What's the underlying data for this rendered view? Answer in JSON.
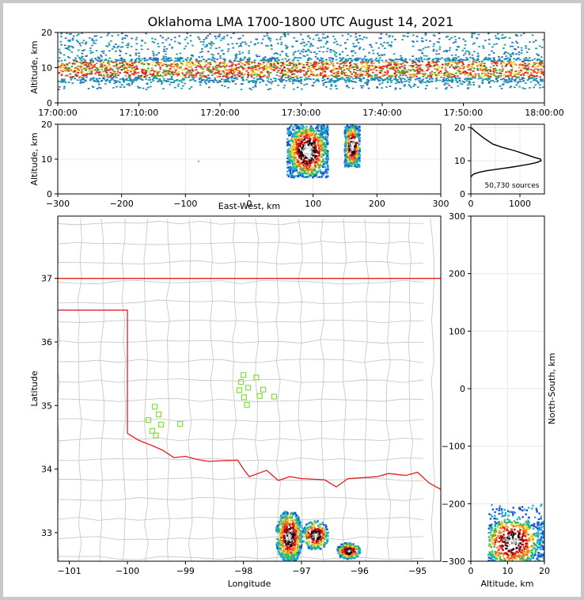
{
  "chart_data": [
    {
      "id": "time-height",
      "type": "heatmap",
      "title": "Oklahoma LMA 1700-1800 UTC August 14, 2021",
      "ylabel": "Altitude, km",
      "xticks": [
        "17:00:00",
        "17:10:00",
        "17:20:00",
        "17:30:00",
        "17:40:00",
        "17:50:00",
        "18:00:00"
      ],
      "xlim_minutes": [
        0,
        60
      ],
      "ylim": [
        0,
        20
      ],
      "yticks": [
        0,
        10,
        20
      ],
      "band": {
        "core_low": 6,
        "core_high": 13,
        "outer_low": 4,
        "outer_high": 20
      }
    },
    {
      "id": "ew-alt",
      "type": "heatmap",
      "xlabel": "East-West, km",
      "ylabel": "Altitude, km",
      "xlim": [
        -300,
        300
      ],
      "xticks": [
        -300,
        -200,
        -100,
        0,
        100,
        200,
        300
      ],
      "ylim": [
        0,
        20
      ],
      "yticks": [
        0,
        10,
        20
      ],
      "cells": [
        {
          "x0": 58,
          "x1": 122,
          "y0": 5,
          "y1": 20
        },
        {
          "x0": 148,
          "x1": 172,
          "y0": 8,
          "y1": 20
        }
      ]
    },
    {
      "id": "alt-histogram",
      "type": "line",
      "note": "50,730 sources",
      "xlim": [
        0,
        1500
      ],
      "xticks": [
        0,
        1000
      ],
      "ylim": [
        0,
        21
      ],
      "yticks": [
        0,
        10,
        20
      ],
      "x": [
        0,
        20,
        60,
        160,
        320,
        560,
        800,
        1000,
        1200,
        1350,
        1430,
        1420,
        1300,
        1100,
        900,
        650,
        450,
        250,
        80,
        10
      ],
      "y": [
        5,
        5.5,
        6,
        6.5,
        7,
        7.5,
        8,
        8.5,
        9,
        9.5,
        10,
        10.5,
        11,
        12,
        13,
        14,
        15,
        17,
        19,
        20
      ]
    },
    {
      "id": "plan-view",
      "type": "scatter",
      "xlabel": "Longitude",
      "ylabel": "Latitude",
      "y2label": "North-South, km",
      "xlim": [
        -101.2,
        -94.6
      ],
      "ylim": [
        32.55,
        37.98
      ],
      "xticks": [
        -101,
        -100,
        -99,
        -98,
        -97,
        -96,
        -95
      ],
      "yticks": [
        33,
        34,
        35,
        36,
        37
      ],
      "y2ticks": [
        300,
        200,
        100,
        0,
        -100,
        -200,
        -300
      ],
      "stations": [
        {
          "lon": -99.64,
          "lat": 34.77
        },
        {
          "lon": -99.53,
          "lat": 34.98
        },
        {
          "lon": -99.46,
          "lat": 34.86
        },
        {
          "lon": -99.42,
          "lat": 34.7
        },
        {
          "lon": -99.57,
          "lat": 34.6
        },
        {
          "lon": -99.51,
          "lat": 34.53
        },
        {
          "lon": -99.09,
          "lat": 34.71
        },
        {
          "lon": -98.0,
          "lat": 35.48
        },
        {
          "lon": -98.04,
          "lat": 35.37
        },
        {
          "lon": -97.78,
          "lat": 35.44
        },
        {
          "lon": -97.92,
          "lat": 35.28
        },
        {
          "lon": -98.07,
          "lat": 35.24
        },
        {
          "lon": -97.99,
          "lat": 35.13
        },
        {
          "lon": -97.94,
          "lat": 35.01
        },
        {
          "lon": -97.72,
          "lat": 35.15
        },
        {
          "lon": -97.66,
          "lat": 35.25
        },
        {
          "lon": -97.47,
          "lat": 35.14
        }
      ],
      "storms": [
        {
          "lon0": -97.45,
          "lon1": -97.0,
          "lat0": 32.55,
          "lat1": 33.35
        },
        {
          "lon0": -97.0,
          "lon1": -96.55,
          "lat0": 32.75,
          "lat1": 33.2
        },
        {
          "lon0": -96.4,
          "lon1": -96.0,
          "lat0": 32.6,
          "lat1": 32.85
        }
      ]
    },
    {
      "id": "ns-alt",
      "type": "heatmap",
      "xlabel": "Altitude, km",
      "xlim": [
        0,
        20
      ],
      "xticks": [
        0,
        10,
        20
      ],
      "ylim": [
        -300,
        300
      ],
      "cells": [
        {
          "x0": 4.5,
          "x1": 20,
          "y0": -300,
          "y1": -200
        }
      ]
    }
  ]
}
